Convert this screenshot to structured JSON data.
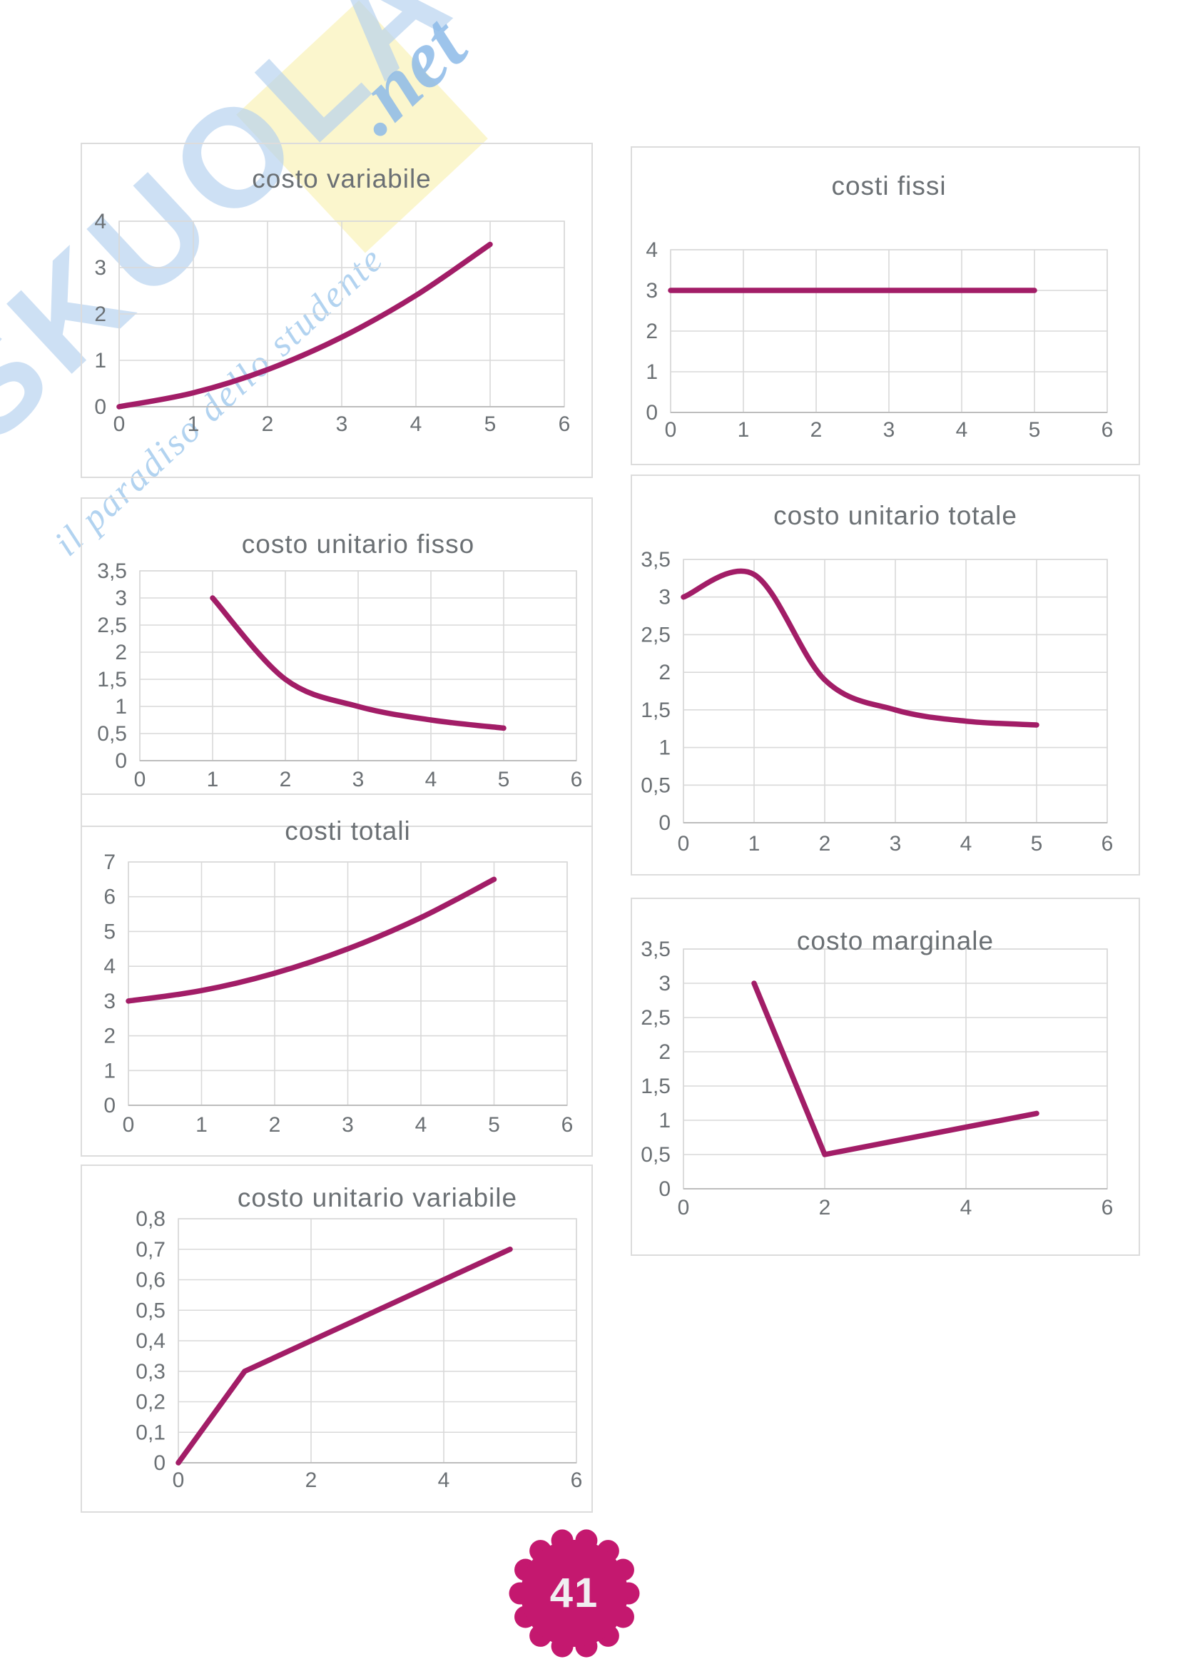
{
  "page": {
    "number_badge": "41",
    "badge_color": "#c4186f",
    "badge_text_color": "#f0eef1",
    "line_color": "#a21d67",
    "title_color": "#6b7074",
    "grid_color": "#d9d9d9",
    "axis_color": "#bdbdbd"
  },
  "watermark": {
    "brand": "SKUOLA",
    "tld": ".net",
    "tagline": "il paradiso dello studente"
  },
  "chart_data": [
    {
      "type": "line",
      "title": "costo variabile",
      "xlabel": "",
      "ylabel": "",
      "grid": true,
      "legend": null,
      "smooth": true,
      "xlim": [
        0,
        6
      ],
      "ylim": [
        0,
        4
      ],
      "xticks": [
        0,
        1,
        2,
        3,
        4,
        5,
        6
      ],
      "xtick_labels": [
        "0",
        "1",
        "2",
        "3",
        "4",
        "5",
        "6"
      ],
      "yticks": [
        0,
        1,
        2,
        3,
        4
      ],
      "ytick_labels": [
        "0",
        "1",
        "2",
        "3",
        "4"
      ],
      "x": [
        0,
        1,
        2,
        3,
        4,
        5
      ],
      "y": [
        0,
        0.3,
        0.8,
        1.5,
        2.4,
        3.5
      ]
    },
    {
      "type": "line",
      "title": "costi fissi",
      "xlabel": "",
      "ylabel": "",
      "grid": true,
      "legend": null,
      "smooth": false,
      "xlim": [
        0,
        6
      ],
      "ylim": [
        0,
        4
      ],
      "xticks": [
        0,
        1,
        2,
        3,
        4,
        5,
        6
      ],
      "xtick_labels": [
        "0",
        "1",
        "2",
        "3",
        "4",
        "5",
        "6"
      ],
      "yticks": [
        0,
        1,
        2,
        3,
        4
      ],
      "ytick_labels": [
        "0",
        "1",
        "2",
        "3",
        "4"
      ],
      "x": [
        0,
        1,
        2,
        3,
        4,
        5
      ],
      "y": [
        3,
        3,
        3,
        3,
        3,
        3
      ]
    },
    {
      "type": "line",
      "title": "costo unitario fisso",
      "xlabel": "",
      "ylabel": "",
      "grid": true,
      "legend": null,
      "smooth": true,
      "xlim": [
        0,
        6
      ],
      "ylim": [
        0,
        3.5
      ],
      "xticks": [
        0,
        1,
        2,
        3,
        4,
        5,
        6
      ],
      "xtick_labels": [
        "0",
        "1",
        "2",
        "3",
        "4",
        "5",
        "6"
      ],
      "yticks": [
        0,
        0.5,
        1,
        1.5,
        2,
        2.5,
        3,
        3.5
      ],
      "ytick_labels": [
        "0",
        "0,5",
        "1",
        "1,5",
        "2",
        "2,5",
        "3",
        "3,5"
      ],
      "x": [
        1,
        2,
        3,
        4,
        5
      ],
      "y": [
        3,
        1.5,
        1,
        0.75,
        0.6
      ]
    },
    {
      "type": "line",
      "title": "costo unitario totale",
      "xlabel": "",
      "ylabel": "",
      "grid": true,
      "legend": null,
      "smooth": true,
      "xlim": [
        0,
        6
      ],
      "ylim": [
        0,
        3.5
      ],
      "xticks": [
        0,
        1,
        2,
        3,
        4,
        5,
        6
      ],
      "xtick_labels": [
        "0",
        "1",
        "2",
        "3",
        "4",
        "5",
        "6"
      ],
      "yticks": [
        0,
        0.5,
        1,
        1.5,
        2,
        2.5,
        3,
        3.5
      ],
      "ytick_labels": [
        "0",
        "0,5",
        "1",
        "1,5",
        "2",
        "2,5",
        "3",
        "3,5"
      ],
      "x": [
        0,
        1,
        2,
        3,
        4,
        5
      ],
      "y": [
        3,
        3.3,
        1.9,
        1.5,
        1.35,
        1.3
      ]
    },
    {
      "type": "line",
      "title": "costi totali",
      "xlabel": "",
      "ylabel": "",
      "grid": true,
      "legend": null,
      "smooth": true,
      "xlim": [
        0,
        6
      ],
      "ylim": [
        0,
        7
      ],
      "xticks": [
        0,
        1,
        2,
        3,
        4,
        5,
        6
      ],
      "xtick_labels": [
        "0",
        "1",
        "2",
        "3",
        "4",
        "5",
        "6"
      ],
      "yticks": [
        0,
        1,
        2,
        3,
        4,
        5,
        6,
        7
      ],
      "ytick_labels": [
        "0",
        "1",
        "2",
        "3",
        "4",
        "5",
        "6",
        "7"
      ],
      "x": [
        0,
        1,
        2,
        3,
        4,
        5
      ],
      "y": [
        3,
        3.3,
        3.8,
        4.5,
        5.4,
        6.5
      ]
    },
    {
      "type": "line",
      "title": "costo marginale",
      "xlabel": "",
      "ylabel": "",
      "grid": true,
      "legend": null,
      "smooth": false,
      "xlim": [
        0,
        6
      ],
      "ylim": [
        0,
        3.5
      ],
      "xticks": [
        0,
        2,
        4,
        6
      ],
      "xtick_labels": [
        "0",
        "2",
        "4",
        "6"
      ],
      "yticks": [
        0,
        0.5,
        1,
        1.5,
        2,
        2.5,
        3,
        3.5
      ],
      "ytick_labels": [
        "0",
        "0,5",
        "1",
        "1,5",
        "2",
        "2,5",
        "3",
        "3,5"
      ],
      "x": [
        1,
        2,
        3,
        4,
        5
      ],
      "y": [
        3,
        0.5,
        0.7,
        0.9,
        1.1
      ]
    },
    {
      "type": "line",
      "title": "costo unitario variabile",
      "xlabel": "",
      "ylabel": "",
      "grid": true,
      "legend": null,
      "smooth": false,
      "xlim": [
        0,
        6
      ],
      "ylim": [
        0,
        0.8
      ],
      "xticks": [
        0,
        2,
        4,
        6
      ],
      "xtick_labels": [
        "0",
        "2",
        "4",
        "6"
      ],
      "yticks": [
        0,
        0.1,
        0.2,
        0.3,
        0.4,
        0.5,
        0.6,
        0.7,
        0.8
      ],
      "ytick_labels": [
        "0",
        "0,1",
        "0,2",
        "0,3",
        "0,4",
        "0,5",
        "0,6",
        "0,7",
        "0,8"
      ],
      "x": [
        0,
        1,
        2,
        3,
        4,
        5
      ],
      "y": [
        0,
        0.3,
        0.4,
        0.5,
        0.6,
        0.7
      ]
    }
  ]
}
